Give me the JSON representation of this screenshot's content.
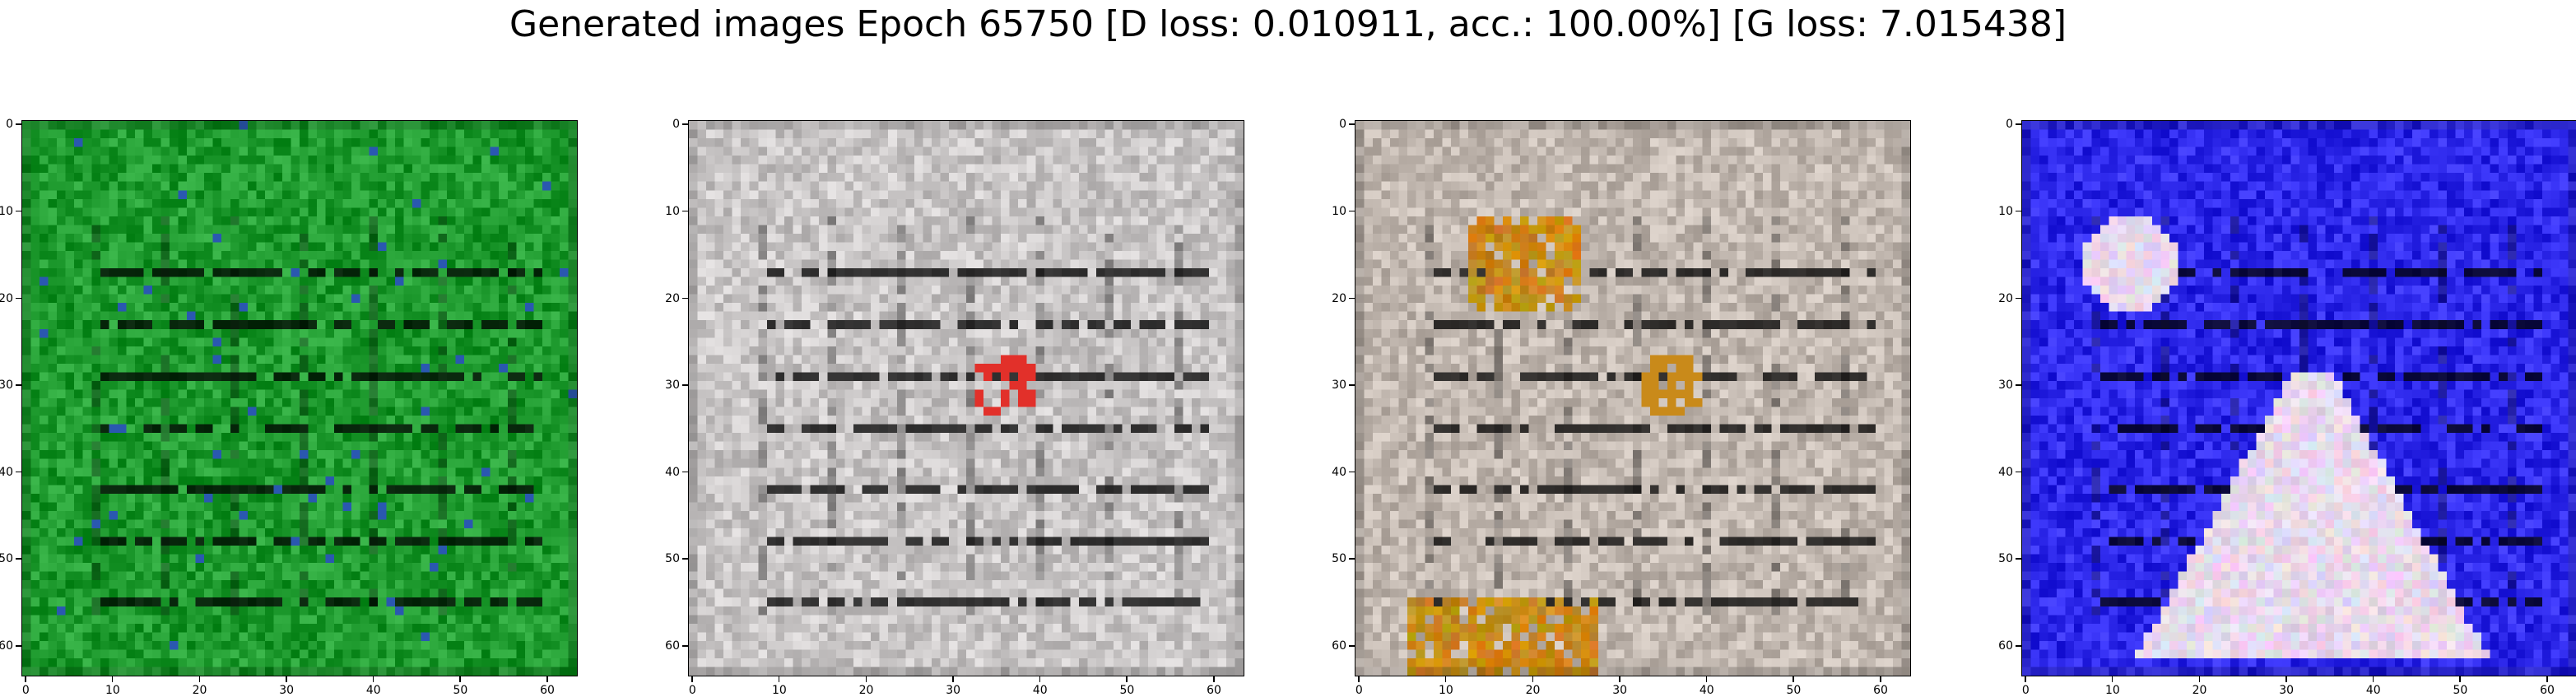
{
  "figure": {
    "title": "Generated images Epoch 65750 [D loss: 0.010911, acc.: 100.00%] [G loss: 7.015438]"
  },
  "axes": {
    "x_ticks": [
      "0",
      "10",
      "20",
      "30",
      "40",
      "50",
      "60"
    ],
    "y_ticks": [
      "0",
      "10",
      "20",
      "30",
      "40",
      "50",
      "60"
    ],
    "data_range": [
      0,
      63
    ]
  },
  "images": [
    {
      "name": "generated-image-1",
      "palette": "green",
      "base_color": "#1e9a2e",
      "accent_color": "#2a58b0"
    },
    {
      "name": "generated-image-2",
      "palette": "grey",
      "base_color": "#c9c6c6",
      "accent_color": "#e2302a"
    },
    {
      "name": "generated-image-3",
      "palette": "brown",
      "base_color": "#c2b8b0",
      "accent_color": "#c98a1a"
    },
    {
      "name": "generated-image-4",
      "palette": "blue",
      "base_color": "#2d28ea",
      "accent_color": "#e8d8ec"
    }
  ]
}
